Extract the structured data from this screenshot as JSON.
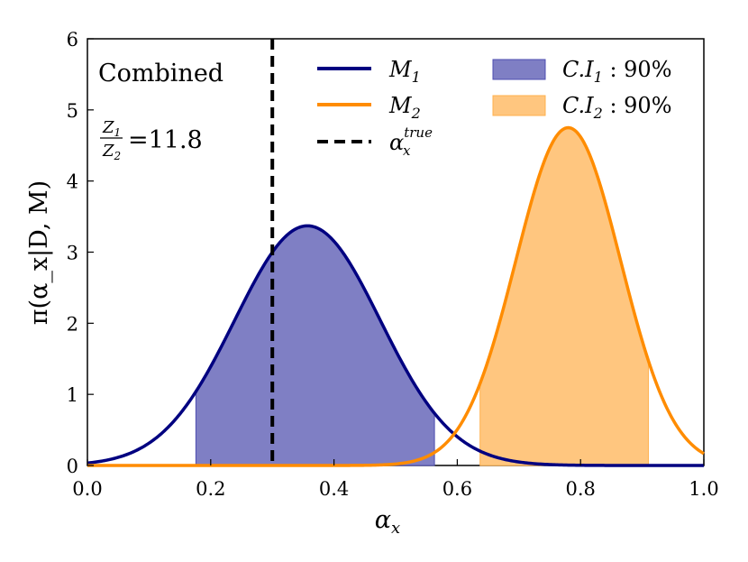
{
  "chart_data": {
    "type": "line",
    "title": "",
    "xlabel": "α_x",
    "ylabel": "π(α_x|D, M)",
    "xlim": [
      0.0,
      1.0
    ],
    "ylim": [
      0,
      6
    ],
    "x_ticks": [
      "0.0",
      "0.2",
      "0.4",
      "0.6",
      "0.8",
      "1.0"
    ],
    "y_ticks": [
      "0",
      "1",
      "2",
      "3",
      "4",
      "5",
      "6"
    ],
    "grid": false,
    "legend_position": "top-right",
    "series": [
      {
        "name": "M1",
        "kind": "gaussian",
        "mean": 0.357,
        "peak": 3.37,
        "sigma": 0.118,
        "color": "#000080",
        "ci_label": "C.I1 : 90%",
        "ci_range": [
          0.176,
          0.563
        ],
        "ci_color": "#7f7fc4"
      },
      {
        "name": "M2",
        "kind": "gaussian",
        "mean": 0.78,
        "peak": 4.75,
        "sigma": 0.085,
        "color": "#ff8c00",
        "ci_label": "C.I2 : 90%",
        "ci_range": [
          0.637,
          0.91
        ],
        "ci_color": "#ffc67f"
      }
    ],
    "vline": {
      "name": "α_x^true",
      "x": 0.3,
      "color": "#000000",
      "style": "dashed"
    },
    "annotations": {
      "panel": "Combined",
      "bayes_factor_label": "Z1/Z2",
      "bayes_factor_value": "=11.8"
    },
    "legend": {
      "m1": "M",
      "m1_sub": "1",
      "m2": "M",
      "m2_sub": "2",
      "true_base": "α",
      "true_sub": "x",
      "true_sup": "true",
      "ci1_pre": "C.I",
      "ci1_sub": "1",
      "ci1_post": " : 90%",
      "ci2_pre": "C.I",
      "ci2_sub": "2",
      "ci2_post": " : 90%"
    },
    "bf": {
      "num": "Z",
      "num_sub": "1",
      "den": "Z",
      "den_sub": "2"
    }
  }
}
